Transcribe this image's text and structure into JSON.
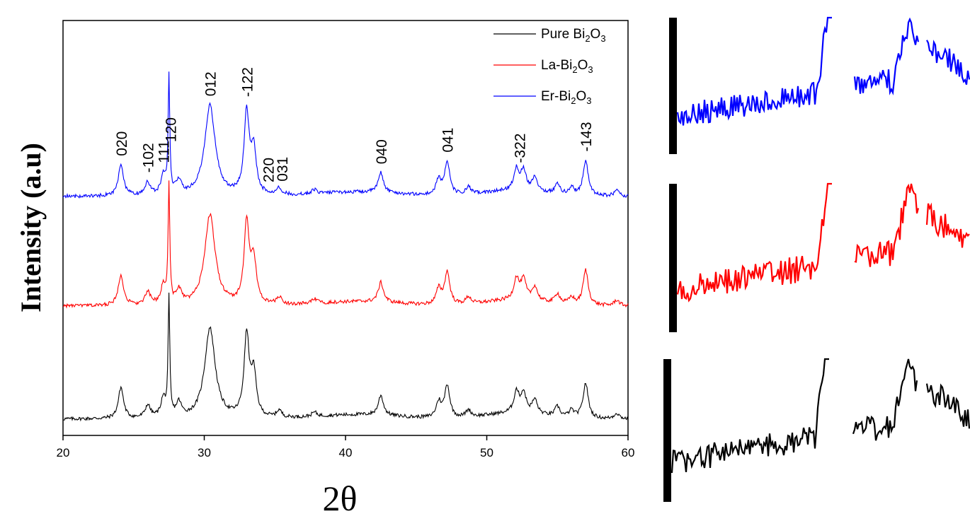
{
  "chart_data": {
    "type": "line",
    "title": "",
    "xlabel": "2θ",
    "ylabel": "Intensity (a.u)",
    "xlim": [
      20,
      60
    ],
    "x_ticks": [
      20,
      30,
      40,
      50,
      60
    ],
    "y_ticks_shown": false,
    "grid": false,
    "legend_position": "top-right",
    "series": [
      {
        "name": "Pure Bi2O3",
        "legend": {
          "base": "Pure Bi",
          "sub1": "2",
          "mid": "O",
          "sub2": "3"
        },
        "color": "#000000",
        "offset": 0,
        "baseline": 10,
        "peaks": [
          [
            24.1,
            44
          ],
          [
            26.0,
            18
          ],
          [
            27.1,
            26
          ],
          [
            27.5,
            165
          ],
          [
            28.2,
            20
          ],
          [
            30.4,
            128
          ],
          [
            33.0,
            115
          ],
          [
            33.5,
            60
          ],
          [
            35.3,
            10
          ],
          [
            37.8,
            6
          ],
          [
            42.5,
            28
          ],
          [
            46.6,
            22
          ],
          [
            47.2,
            46
          ],
          [
            48.7,
            10
          ],
          [
            52.1,
            30
          ],
          [
            52.6,
            28
          ],
          [
            53.4,
            20
          ],
          [
            55.0,
            14
          ],
          [
            56.0,
            10
          ],
          [
            57.0,
            50
          ],
          [
            59.2,
            8
          ]
        ]
      },
      {
        "name": "La-Bi2O3",
        "legend": {
          "base": "La-Bi",
          "sub1": "2",
          "mid": "O",
          "sub2": "3"
        },
        "color": "#ff0000",
        "offset": 160,
        "baseline": 10,
        "peaks": [
          [
            24.1,
            44
          ],
          [
            26.0,
            18
          ],
          [
            27.1,
            26
          ],
          [
            27.5,
            165
          ],
          [
            28.2,
            20
          ],
          [
            30.4,
            128
          ],
          [
            33.0,
            115
          ],
          [
            33.5,
            60
          ],
          [
            35.3,
            10
          ],
          [
            37.8,
            6
          ],
          [
            42.5,
            28
          ],
          [
            46.6,
            22
          ],
          [
            47.2,
            46
          ],
          [
            48.7,
            10
          ],
          [
            52.1,
            30
          ],
          [
            52.6,
            28
          ],
          [
            53.4,
            20
          ],
          [
            55.0,
            14
          ],
          [
            56.0,
            10
          ],
          [
            57.0,
            50
          ],
          [
            59.2,
            8
          ]
        ]
      },
      {
        "name": "Er-Bi2O3",
        "legend": {
          "base": "Er-Bi",
          "sub1": "2",
          "mid": "O",
          "sub2": "3"
        },
        "color": "#0000ff",
        "offset": 315,
        "baseline": 10,
        "peaks": [
          [
            24.1,
            44
          ],
          [
            26.0,
            18
          ],
          [
            27.1,
            26
          ],
          [
            27.5,
            165
          ],
          [
            28.2,
            20
          ],
          [
            30.4,
            128
          ],
          [
            33.0,
            115
          ],
          [
            33.5,
            60
          ],
          [
            35.3,
            10
          ],
          [
            37.8,
            6
          ],
          [
            42.5,
            28
          ],
          [
            46.6,
            22
          ],
          [
            47.2,
            46
          ],
          [
            48.7,
            10
          ],
          [
            52.1,
            30
          ],
          [
            52.6,
            28
          ],
          [
            53.4,
            20
          ],
          [
            55.0,
            14
          ],
          [
            56.0,
            10
          ],
          [
            57.0,
            50
          ],
          [
            59.2,
            8
          ]
        ]
      }
    ],
    "annotations": [
      {
        "text": "020",
        "x": 24.1
      },
      {
        "text": "-102",
        "x": 26.0
      },
      {
        "text": "111",
        "x": 27.1
      },
      {
        "text": "120",
        "x": 27.6
      },
      {
        "text": "012",
        "x": 30.4
      },
      {
        "text": "-122",
        "x": 33.0
      },
      {
        "text": "220",
        "x": 34.5
      },
      {
        "text": "031",
        "x": 35.5
      },
      {
        "text": "040",
        "x": 42.5
      },
      {
        "text": "041",
        "x": 47.2
      },
      {
        "text": "-322",
        "x": 52.3
      },
      {
        "text": "-143",
        "x": 57.0
      }
    ],
    "insets": [
      {
        "series": "Er-Bi2O3",
        "color": "#0000ff"
      },
      {
        "series": "La-Bi2O3",
        "color": "#ff0000"
      },
      {
        "series": "Pure Bi2O3",
        "color": "#000000"
      }
    ]
  }
}
